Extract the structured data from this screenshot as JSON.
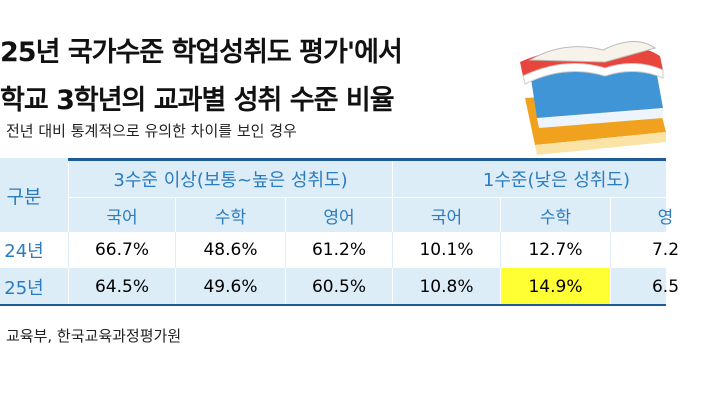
{
  "header": {
    "title_lines": [
      "25년 국가수준 학업성취도 평가'에서",
      "학교 3학년의 교과별 성취 수준 비율"
    ],
    "note": "전년 대비 통계적으로 유의한 차이를 보인 경우"
  },
  "table": {
    "corner": "구분",
    "groups": [
      "3수준 이상(보통~높은 성취도)",
      "1수준(낮은 성취도)"
    ],
    "subjects": [
      "국어",
      "수학",
      "영어",
      "국어",
      "수학",
      "영"
    ],
    "rows": [
      {
        "label": "24년",
        "cells": [
          "66.7%",
          "48.6%",
          "61.2%",
          "10.1%",
          "12.7%",
          "7.2"
        ]
      },
      {
        "label": "25년",
        "cells": [
          "64.5%",
          "49.6%",
          "60.5%",
          "10.8%",
          "14.9%",
          "6.5"
        ]
      }
    ],
    "highlight": {
      "row": 1,
      "col": 4,
      "color": "#ffff33"
    }
  },
  "source": "교육부, 한국교육과정평가원"
}
